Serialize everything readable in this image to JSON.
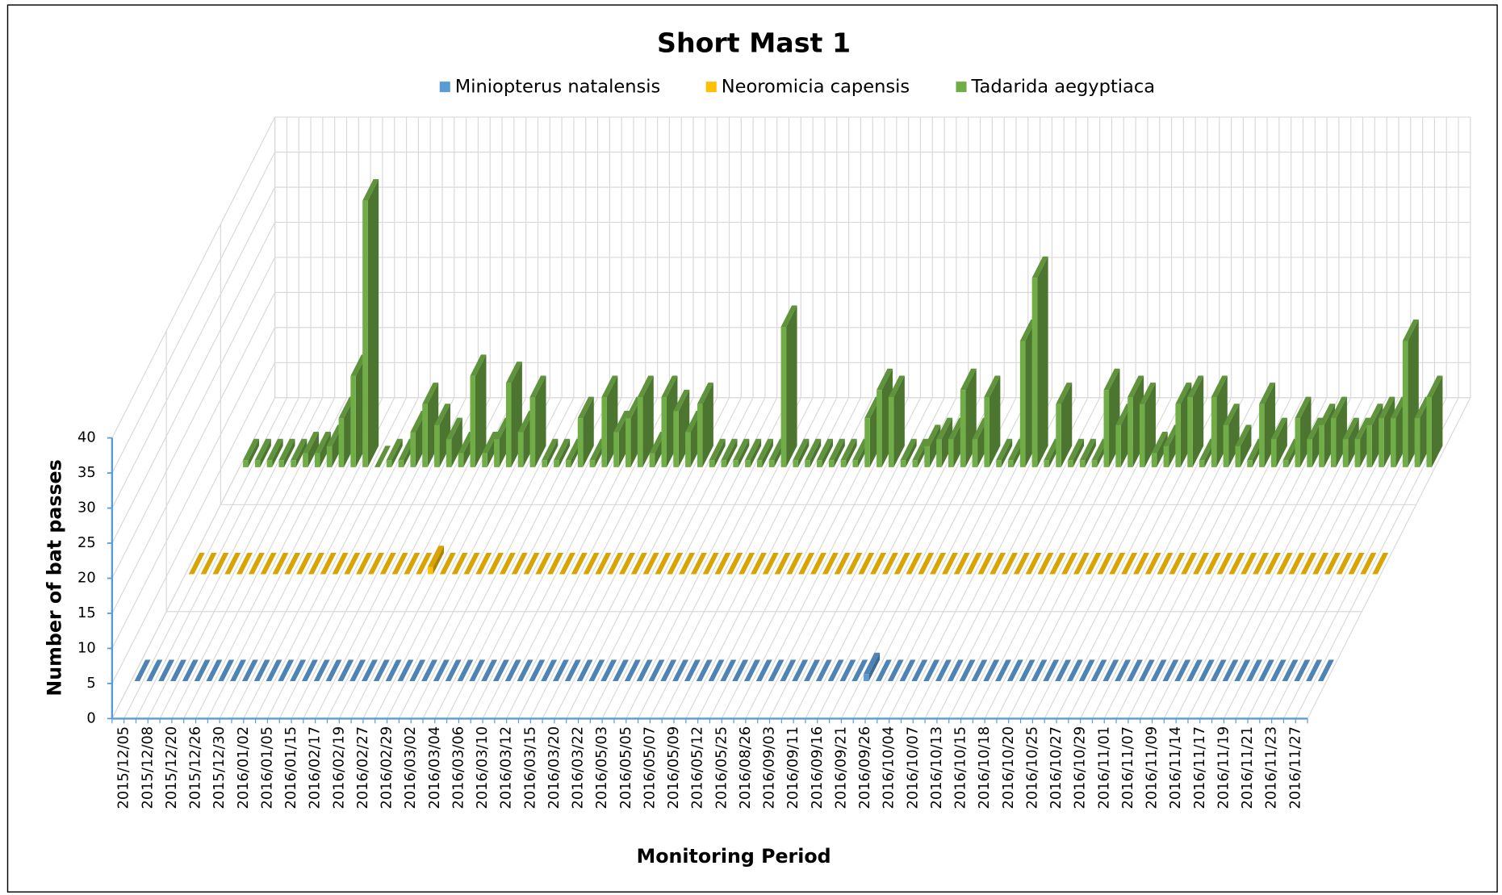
{
  "chart_data": {
    "type": "bar3d",
    "title": "Short Mast 1",
    "x_label": "Monitoring Period",
    "y_label": "Number of bat passes",
    "categories": [
      "2015/12/05",
      null,
      "2015/12/08",
      null,
      "2015/12/20",
      null,
      "2015/12/26",
      null,
      "2015/12/30",
      null,
      "2016/01/02",
      null,
      "2016/01/05",
      null,
      "2016/01/15",
      null,
      "2016/02/17",
      null,
      "2016/02/19",
      null,
      "2016/02/27",
      null,
      "2016/02/29",
      null,
      "2016/03/02",
      null,
      "2016/03/04",
      null,
      "2016/03/06",
      null,
      "2016/03/10",
      null,
      "2016/03/12",
      null,
      "2016/03/15",
      null,
      "2016/03/20",
      null,
      "2016/03/22",
      null,
      "2016/05/03",
      null,
      "2016/05/05",
      null,
      "2016/05/07",
      null,
      "2016/05/09",
      null,
      "2016/05/12",
      null,
      "2016/05/25",
      null,
      "2016/08/26",
      null,
      "2016/09/03",
      null,
      "2016/09/11",
      null,
      "2016/09/16",
      null,
      "2016/09/21",
      null,
      "2016/09/26",
      null,
      "2016/10/04",
      null,
      "2016/10/07",
      null,
      "2016/10/13",
      null,
      "2016/10/15",
      null,
      "2016/10/18",
      null,
      "2016/10/20",
      null,
      "2016/10/25",
      null,
      "2016/10/27",
      null,
      "2016/10/29",
      null,
      "2016/11/01",
      null,
      "2016/11/07",
      null,
      "2016/11/09",
      null,
      "2016/11/14",
      null,
      "2016/11/17",
      null,
      "2016/11/19",
      null,
      "2016/11/21",
      null,
      "2016/11/23",
      null,
      "2016/11/27",
      null
    ],
    "series": [
      {
        "name": "Miniopterus natalensis",
        "color": "#5b9bd5",
        "values": [
          0,
          0,
          0,
          0,
          0,
          0,
          0,
          0,
          0,
          0,
          0,
          0,
          0,
          0,
          0,
          0,
          0,
          0,
          0,
          0,
          0,
          0,
          0,
          0,
          0,
          0,
          0,
          0,
          0,
          0,
          0,
          0,
          0,
          0,
          0,
          0,
          0,
          0,
          0,
          0,
          0,
          0,
          0,
          0,
          0,
          0,
          0,
          0,
          0,
          0,
          0,
          0,
          0,
          0,
          0,
          0,
          0,
          0,
          0,
          0,
          0,
          1,
          0,
          0,
          0,
          0,
          0,
          0,
          0,
          0,
          0,
          0,
          0,
          0,
          0,
          0,
          0,
          0,
          0,
          0,
          0,
          0,
          0,
          0,
          0,
          0,
          0,
          0,
          0,
          0,
          0,
          0,
          0,
          0,
          0,
          0,
          0,
          0,
          0,
          0
        ]
      },
      {
        "name": "Neoromicia capensis",
        "color": "#ffc000",
        "values": [
          0,
          0,
          0,
          0,
          0,
          0,
          0,
          0,
          0,
          0,
          0,
          0,
          0,
          0,
          0,
          0,
          0,
          0,
          0,
          0,
          1,
          0,
          0,
          0,
          0,
          0,
          0,
          0,
          0,
          0,
          0,
          0,
          0,
          0,
          0,
          0,
          0,
          0,
          0,
          0,
          0,
          0,
          0,
          0,
          0,
          0,
          0,
          0,
          0,
          0,
          0,
          0,
          0,
          0,
          0,
          0,
          0,
          0,
          0,
          0,
          0,
          0,
          0,
          0,
          0,
          0,
          0,
          0,
          0,
          0,
          0,
          0,
          0,
          0,
          0,
          0,
          0,
          0,
          0,
          0,
          0,
          0,
          0,
          0,
          0,
          0,
          0,
          0,
          0,
          0,
          0,
          0,
          0,
          0,
          0,
          0,
          0,
          0,
          0,
          0
        ]
      },
      {
        "name": "Tadarida aegyptiaca",
        "color": "#70ad47",
        "values": [
          1,
          1,
          1,
          1,
          1,
          2,
          2,
          3,
          7,
          13,
          38,
          0,
          1,
          1,
          5,
          9,
          6,
          4,
          2,
          13,
          2,
          4,
          12,
          5,
          10,
          1,
          1,
          1,
          7,
          1,
          10,
          5,
          7,
          10,
          2,
          10,
          8,
          5,
          9,
          1,
          1,
          1,
          1,
          1,
          1,
          20,
          1,
          1,
          1,
          1,
          1,
          1,
          7,
          11,
          10,
          1,
          1,
          3,
          4,
          4,
          11,
          4,
          10,
          1,
          1,
          18,
          27,
          1,
          9,
          1,
          1,
          1,
          11,
          6,
          10,
          9,
          2,
          3,
          9,
          10,
          1,
          10,
          6,
          3,
          1,
          9,
          4,
          1,
          7,
          4,
          6,
          7,
          4,
          4,
          6,
          7,
          7,
          18,
          7,
          10
        ]
      }
    ],
    "ylim": [
      0,
      40
    ],
    "yticks": [
      0,
      5,
      10,
      15,
      20,
      25,
      30,
      35,
      40
    ],
    "grid": true,
    "legend": "top"
  }
}
